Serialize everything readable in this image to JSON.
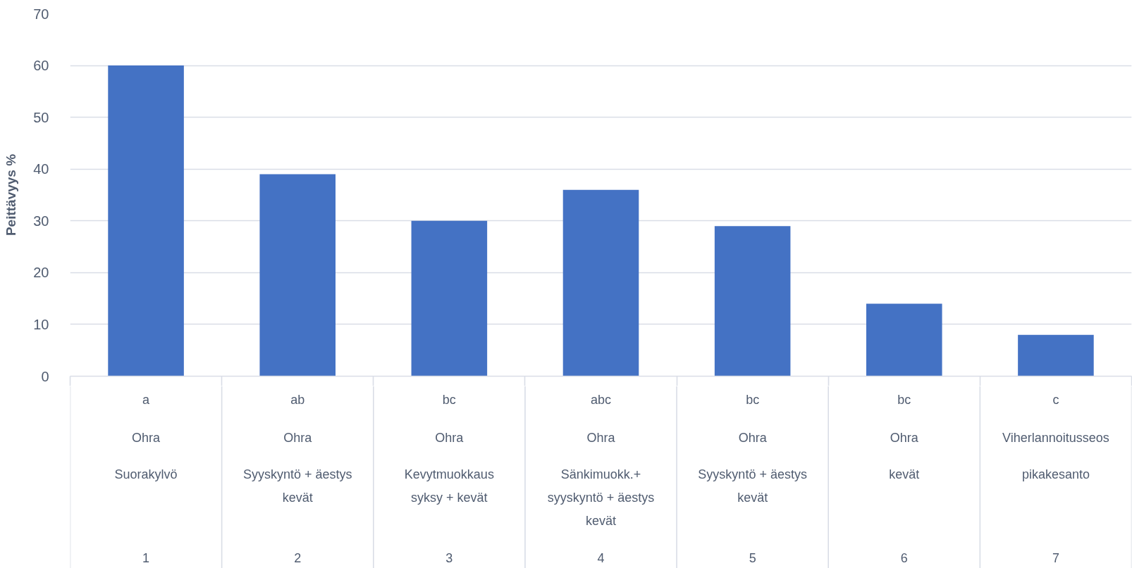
{
  "chart_data": {
    "type": "bar",
    "ylabel": "Peittävyys %",
    "categories": [
      "a\nOhra\nSuorakylvö\n1",
      "ab\nOhra\nSyyskyntö + äestys\nkevät\n2",
      "bc\nOhra\nKevytmuokkaus\nsyksy + kevät\n3",
      "abc\nOhra\nSänkimuokk.+\nsyyskyntö + äestys\nkevät\n4",
      "bc\nOhra\nSyyskyntö + äestys\nkevät\n5",
      "bc\nOhra\nkevät\n6",
      "c\nViherlannoitusseos\npikakesanto\n7"
    ],
    "values": [
      60,
      39,
      30,
      36,
      29,
      14,
      8
    ],
    "color": "#4472c4",
    "ylim": [
      0,
      70
    ],
    "yticks": [
      0,
      10,
      20,
      30,
      40,
      50,
      60,
      70
    ],
    "grid": "y"
  }
}
